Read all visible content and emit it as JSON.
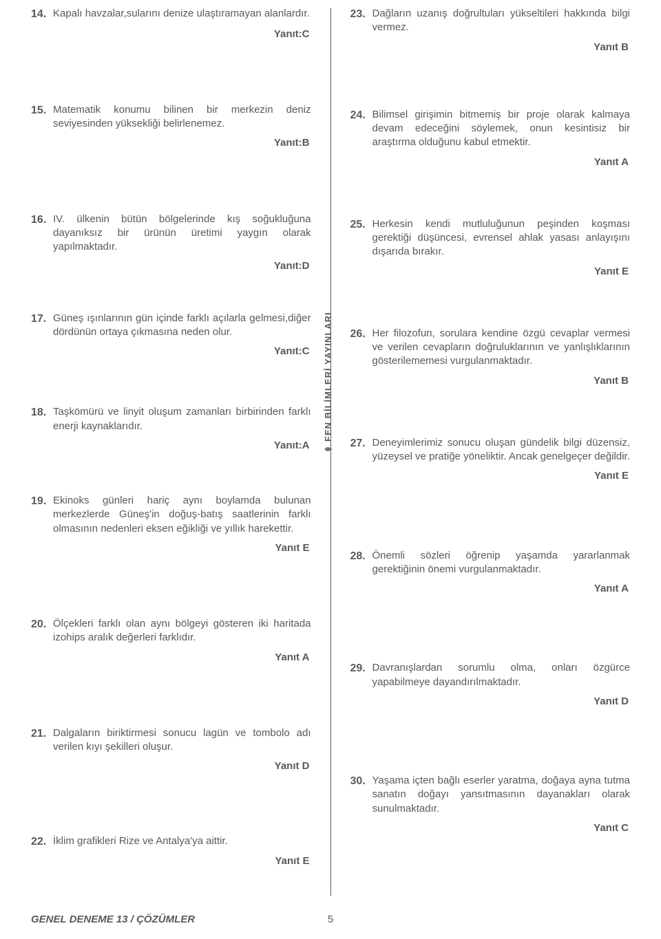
{
  "left": [
    {
      "num": "14.",
      "text": "Kapalı havzalar,sularını denize ulaştıramayan alanlardır.",
      "answer": "Yanıt:C",
      "gap_before": 0,
      "gap_after": 0
    },
    {
      "num": "15.",
      "text": "Matematik konumu bilinen bir merkezin deniz seviyesinden yüksekliği belirlenemez.",
      "answer": "Yanıt:B",
      "gap_before": 90,
      "gap_after": 0
    },
    {
      "num": "16.",
      "text": "IV. ülkenin bütün bölgelerinde kış soğukluğuna dayanıksız bir ürünün üretimi yaygın olarak yapılmaktadır.",
      "answer": "Yanıt:D",
      "gap_before": 90,
      "gap_after": 0
    },
    {
      "num": "17.",
      "text": "Güneş ışınlarının gün içinde farklı açılarla gelmesi,diğer dördünün ortaya çıkmasına neden olur.",
      "answer": "Yanıt:C",
      "gap_before": 55,
      "gap_after": 0
    },
    {
      "num": "18.",
      "text": "Taşkömürü ve linyit oluşum zamanları birbirinden farklı enerji kaynaklarıdır.",
      "answer": "Yanıt:A",
      "gap_before": 68,
      "gap_after": 0
    },
    {
      "num": "19.",
      "text": "Ekinoks günleri hariç aynı boylamda bulunan merkezlerde Güneş'in doğuş-batış saatlerinin farklı olmasının nedenleri eksen eğikliği ve yıllık harekettir.",
      "answer": "Yanıt E",
      "gap_before": 60,
      "gap_after": 0
    },
    {
      "num": "20.",
      "text": "Ölçekleri farklı olan aynı bölgeyi gösteren iki haritada izohips aralık değerleri farklıdır.",
      "answer": "Yanıt A",
      "gap_before": 90,
      "gap_after": 0
    },
    {
      "num": "21.",
      "text": "Dalgaların biriktirmesi sonucu lagün ve tombolo adı verilen kıyı şekilleri oluşur.",
      "answer": "Yanıt D",
      "gap_before": 90,
      "gap_after": 0
    },
    {
      "num": "22.",
      "text": "İklim grafikleri Rize ve Antalya'ya aittir.",
      "answer": "Yanıt E",
      "gap_before": 88,
      "gap_after": 0
    }
  ],
  "right": [
    {
      "num": "23.",
      "text": "Dağların uzanış doğrultuları yükseltileri hakkında bilgi vermez.",
      "answer": "Yanıt B",
      "gap_before": 0,
      "gap_after": 0
    },
    {
      "num": "24.",
      "text": "Bilimsel girişimin bitmemiş bir proje olarak kalmaya devam edeceğini söylemek, onun kesintisiz bir araştırma olduğunu kabul etmektir.",
      "answer": "Yanıt A",
      "gap_before": 78,
      "gap_after": 0
    },
    {
      "num": "25.",
      "text": "Herkesin kendi mutluluğunun peşinden koşması gerektiği düşüncesi, evrensel ahlak yasası anlayışını dışarıda bırakır.",
      "answer": "Yanıt E",
      "gap_before": 70,
      "gap_after": 0
    },
    {
      "num": "26.",
      "text": "Her filozofun, sorulara kendine özgü cevaplar vermesi ve verilen cevapların doğruluklarının ve yanlışlıklarının gösterilememesi vurgulanmaktadır.",
      "answer": "Yanıt B",
      "gap_before": 70,
      "gap_after": 0
    },
    {
      "num": "27.",
      "text": "Deneyimlerimiz sonucu oluşan gündelik bilgi düzensiz, yüzeysel ve pratiğe yöneliktir. Ancak genelgeçer değildir.",
      "answer": "Yanıt E",
      "gap_before": 70,
      "gap_after": 0
    },
    {
      "num": "28.",
      "text": "Önemli sözleri öğrenip yaşamda yararlanmak gerektiğinin önemi vurgulanmaktadır.",
      "answer": "Yanıt A",
      "gap_before": 95,
      "gap_after": 0
    },
    {
      "num": "29.",
      "text": "Davranışlardan sorumlu olma, onları özgürce yapabilmeye dayandırılmaktadır.",
      "answer": "Yanıt D",
      "gap_before": 95,
      "gap_after": 0
    },
    {
      "num": "30.",
      "text": "Yaşama içten bağlı eserler yaratma, doğaya ayna tutma sanatın doğayı yansıtmasının dayanakları olarak sunulmaktadır.",
      "answer": "Yanıt C",
      "gap_before": 95,
      "gap_after": 0
    }
  ],
  "publisher_label": "FEN BİLİMLERİ YAYINLARI",
  "footer": {
    "title": "GENEL DENEME 13 / ÇÖZÜMLER",
    "page": "5"
  }
}
